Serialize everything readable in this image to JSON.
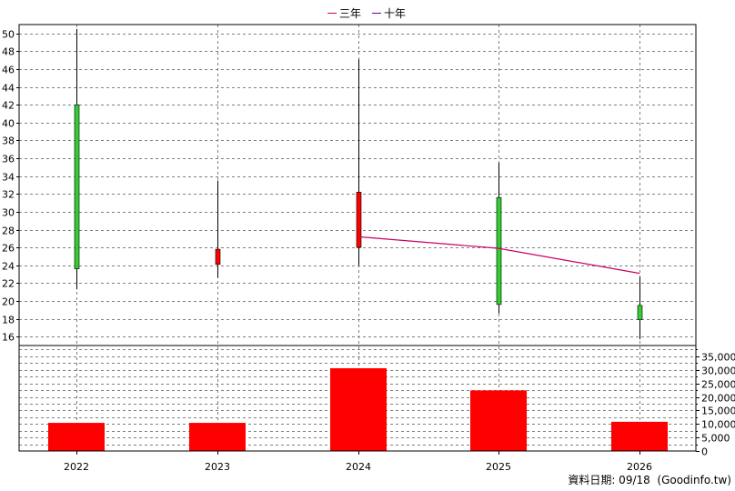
{
  "legend": {
    "items": [
      {
        "label": "三年",
        "color": "#cc0066"
      },
      {
        "label": "十年",
        "color": "#660099"
      }
    ]
  },
  "footer": {
    "source_note": "資料日期: 09/18  (Goodinfo.tw)"
  },
  "colors": {
    "up": "#ff0000",
    "down": "#33cc33",
    "volume": "#ff0000",
    "grid": "#808080",
    "background": "#ffffff"
  },
  "chart_data": [
    {
      "type": "candlestick",
      "grid": true,
      "legend_placement": "top-center",
      "categories": [
        "2022",
        "2023",
        "2024",
        "2025",
        "2026"
      ],
      "ylim": [
        15,
        51
      ],
      "yticks": [
        16,
        18,
        20,
        22,
        24,
        26,
        28,
        30,
        32,
        34,
        36,
        38,
        40,
        42,
        44,
        46,
        48,
        50
      ],
      "candles": [
        {
          "x": "2022",
          "open": 42.0,
          "high": 50.5,
          "low": 21.3,
          "close": 23.6
        },
        {
          "x": "2023",
          "open": 24.1,
          "high": 33.5,
          "low": 22.6,
          "close": 25.8
        },
        {
          "x": "2024",
          "open": 26.0,
          "high": 47.1,
          "low": 24.0,
          "close": 32.2
        },
        {
          "x": "2025",
          "open": 31.6,
          "high": 35.5,
          "low": 18.6,
          "close": 19.6
        },
        {
          "x": "2026",
          "open": 19.5,
          "high": 22.7,
          "low": 15.7,
          "close": 17.9
        }
      ],
      "series": [
        {
          "name": "三年",
          "x": [
            "2024",
            "2025",
            "2026"
          ],
          "values": [
            27.2,
            25.9,
            23.1
          ]
        }
      ]
    },
    {
      "type": "bar",
      "grid": true,
      "categories": [
        "2022",
        "2023",
        "2024",
        "2025",
        "2026"
      ],
      "values": [
        10400,
        10400,
        30600,
        22400,
        10800
      ],
      "ylim": [
        0,
        39000
      ],
      "yticks": [
        0,
        5000,
        10000,
        15000,
        20000,
        25000,
        30000,
        35000
      ],
      "ytick_labels": [
        "0",
        "5,000",
        "10,000",
        "15,000",
        "20,000",
        "25,000",
        "30,000",
        "35,000"
      ]
    }
  ]
}
